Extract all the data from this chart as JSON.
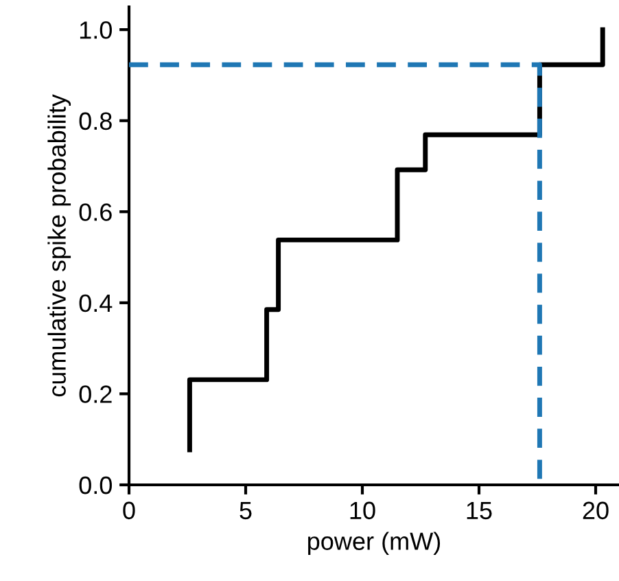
{
  "chart_data": {
    "type": "step",
    "xlabel": "power (mW)",
    "ylabel": "cumulative spike probability",
    "series": [
      {
        "color": "#000000",
        "line_style": "solid",
        "x": [
          2.6,
          2.6,
          5.9,
          6.4,
          11.5,
          12.7,
          17.6,
          20.3
        ],
        "values": [
          0.077,
          0.231,
          0.385,
          0.538,
          0.692,
          0.769,
          0.923,
          1.0
        ]
      },
      {
        "type": "line",
        "color": "#1f77b4",
        "line_style": "dashed",
        "x": [
          0,
          17.6,
          17.6
        ],
        "values": [
          0.923,
          0.923,
          0
        ]
      }
    ],
    "xlim": [
      0,
      21
    ],
    "ylim": [
      0,
      1.05
    ],
    "xticks": [
      0,
      5,
      10,
      15,
      20
    ],
    "yticks": [
      {
        "value": 0,
        "label": "0.0"
      },
      {
        "value": 0.2,
        "label": "0.2"
      },
      {
        "value": 0.4,
        "label": "0.4"
      },
      {
        "value": 0.6,
        "label": "0.6"
      },
      {
        "value": 0.8,
        "label": "0.8"
      },
      {
        "value": 1.0,
        "label": "1.0"
      }
    ],
    "grid": false
  }
}
